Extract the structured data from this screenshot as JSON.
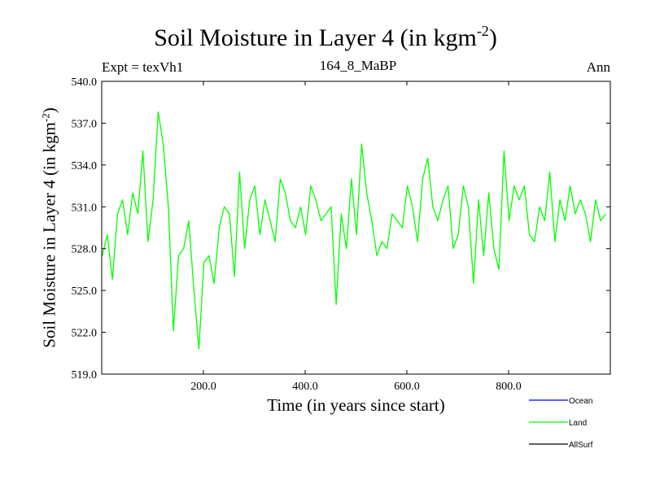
{
  "header": {
    "title_main": "Soil Moisture in Layer 4 (in kgm",
    "title_sup": "-2",
    "title_close": ")",
    "expt": "Expt = texVh1",
    "subtitle": "164_8_MaBP",
    "season": "Ann"
  },
  "chart_data": {
    "type": "line",
    "title": "Soil Moisture in Layer 4 (in kgm-2)",
    "xlabel": "Time (in years since start)",
    "ylabel_main": "Soil Moisture in Layer 4 (in kgm",
    "ylabel_sup": "-2",
    "ylabel_close": ")",
    "xlim": [
      0,
      1000
    ],
    "ylim": [
      519.0,
      540.0
    ],
    "x_ticks": [
      200,
      400,
      600,
      800
    ],
    "x_tick_labels": [
      "200.0",
      "400.0",
      "600.0",
      "800.0"
    ],
    "y_ticks": [
      519,
      522,
      525,
      528,
      531,
      534,
      537,
      540
    ],
    "y_tick_labels": [
      "519.0",
      "522.0",
      "525.0",
      "528.0",
      "531.0",
      "534.0",
      "537.0",
      "540.0"
    ],
    "legend": [
      {
        "name": "Ocean",
        "color": "#0000ff"
      },
      {
        "name": "Land",
        "color": "#00ff00"
      },
      {
        "name": "AllSurf",
        "color": "#000000"
      }
    ],
    "series": [
      {
        "name": "Land",
        "color": "#00ff00",
        "x_start": 1,
        "x_step": 10,
        "values": [
          527.5,
          529.0,
          525.8,
          530.5,
          531.5,
          529.0,
          532.0,
          530.5,
          535.0,
          528.5,
          531.5,
          537.8,
          535.5,
          531.0,
          522.1,
          527.5,
          528.0,
          530.0,
          525.2,
          520.8,
          527.0,
          527.5,
          525.5,
          529.5,
          531.0,
          530.5,
          526.0,
          533.5,
          528.0,
          531.5,
          532.5,
          529.0,
          531.5,
          530.0,
          528.5,
          533.0,
          532.0,
          530.0,
          529.5,
          531.0,
          529.0,
          532.5,
          531.5,
          530.0,
          530.5,
          531.0,
          524.0,
          530.5,
          528.0,
          533.0,
          529.0,
          535.5,
          532.0,
          530.0,
          527.5,
          528.5,
          528.0,
          530.5,
          530.0,
          529.5,
          532.5,
          531.0,
          528.5,
          533.0,
          534.5,
          531.0,
          530.0,
          531.5,
          532.5,
          528.0,
          529.0,
          532.5,
          531.0,
          525.5,
          531.5,
          527.5,
          532.0,
          528.0,
          526.5,
          535.0,
          530.0,
          532.5,
          531.5,
          532.5,
          529.0,
          528.5,
          531.0,
          530.0,
          533.5,
          528.5,
          531.5,
          530.0,
          532.5,
          530.5,
          531.5,
          530.5,
          528.5,
          531.5,
          530.0,
          530.5
        ]
      }
    ]
  }
}
